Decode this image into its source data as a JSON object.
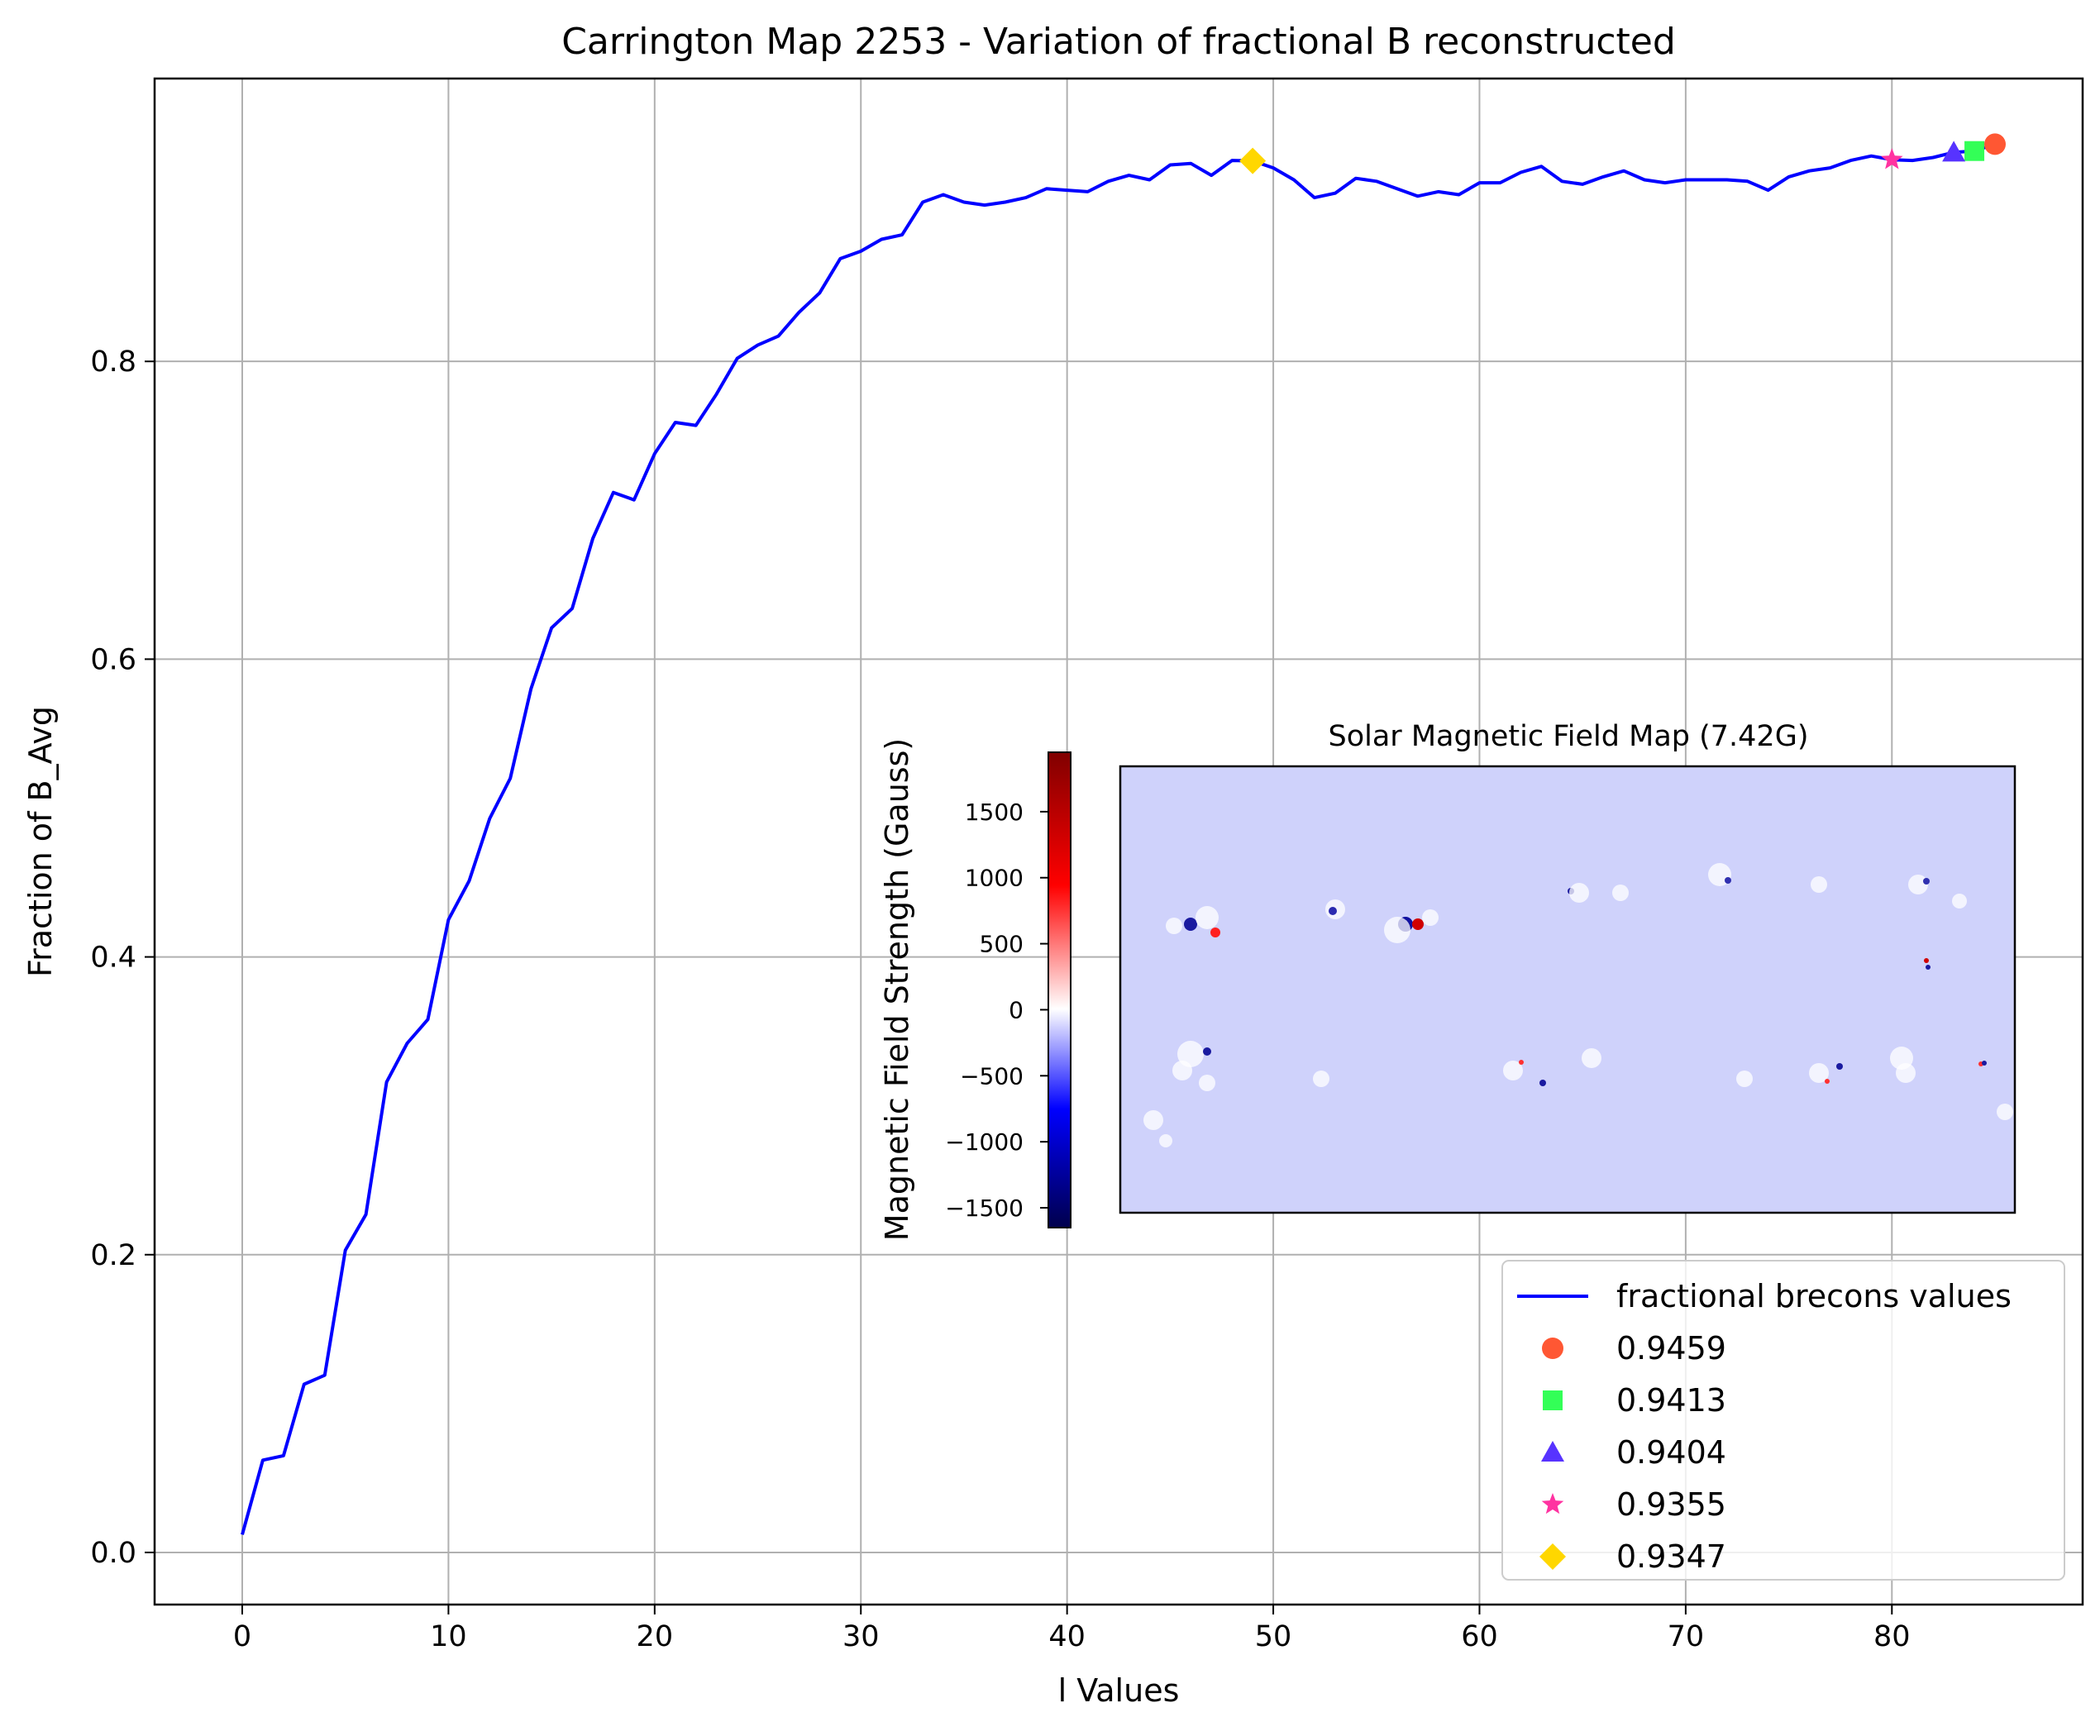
{
  "chart_data": {
    "type": "line",
    "title": "Carrington Map 2253 - Variation of fractional B reconstructed",
    "xlabel": "l Values",
    "ylabel": "Fraction of B_Avg",
    "xlim": [
      -4.25,
      89.25
    ],
    "ylim": [
      -0.035,
      0.99
    ],
    "xticks": [
      0,
      10,
      20,
      30,
      40,
      50,
      60,
      70,
      80
    ],
    "yticks": [
      0.0,
      0.2,
      0.4,
      0.6,
      0.8
    ],
    "ytick_labels": [
      "0.0",
      "0.2",
      "0.4",
      "0.6",
      "0.8"
    ],
    "grid": true,
    "series": [
      {
        "name": "fractional brecons values",
        "color": "#0000ff",
        "x": [
          0,
          1,
          2,
          3,
          4,
          5,
          6,
          7,
          8,
          9,
          10,
          11,
          12,
          13,
          14,
          15,
          16,
          17,
          18,
          19,
          20,
          21,
          22,
          23,
          24,
          25,
          26,
          27,
          28,
          29,
          30,
          31,
          32,
          33,
          34,
          35,
          36,
          37,
          38,
          39,
          40,
          41,
          42,
          43,
          44,
          45,
          46,
          47,
          48,
          49,
          50,
          51,
          52,
          53,
          54,
          55,
          56,
          57,
          58,
          59,
          60,
          61,
          62,
          63,
          64,
          65,
          66,
          67,
          68,
          69,
          70,
          71,
          72,
          73,
          74,
          75,
          76,
          77,
          78,
          79,
          80,
          81,
          82,
          83,
          84,
          85
        ],
        "values": [
          0.012,
          0.062,
          0.065,
          0.113,
          0.119,
          0.203,
          0.227,
          0.316,
          0.342,
          0.358,
          0.425,
          0.451,
          0.493,
          0.52,
          0.58,
          0.621,
          0.634,
          0.681,
          0.712,
          0.707,
          0.738,
          0.759,
          0.757,
          0.778,
          0.802,
          0.811,
          0.817,
          0.833,
          0.846,
          0.869,
          0.874,
          0.882,
          0.885,
          0.907,
          0.912,
          0.907,
          0.905,
          0.907,
          0.91,
          0.916,
          0.915,
          0.914,
          0.921,
          0.925,
          0.922,
          0.932,
          0.933,
          0.925,
          0.935,
          0.9347,
          0.93,
          0.922,
          0.91,
          0.913,
          0.923,
          0.921,
          0.916,
          0.911,
          0.914,
          0.912,
          0.92,
          0.92,
          0.927,
          0.931,
          0.921,
          0.919,
          0.924,
          0.928,
          0.922,
          0.92,
          0.922,
          0.922,
          0.922,
          0.921,
          0.915,
          0.924,
          0.928,
          0.93,
          0.935,
          0.938,
          0.9355,
          0.935,
          0.937,
          0.9404,
          0.9413,
          0.9459
        ]
      }
    ],
    "markers": [
      {
        "label": "0.9459",
        "x": 85,
        "y": 0.9459,
        "shape": "circle",
        "color": "#ff5733"
      },
      {
        "label": "0.9413",
        "x": 84,
        "y": 0.9413,
        "shape": "square",
        "color": "#33ff57"
      },
      {
        "label": "0.9404",
        "x": 83,
        "y": 0.9404,
        "shape": "triangle",
        "color": "#5733ff"
      },
      {
        "label": "0.9355",
        "x": 80,
        "y": 0.9355,
        "shape": "star",
        "color": "#ff33a1"
      },
      {
        "label": "0.9347",
        "x": 49,
        "y": 0.9347,
        "shape": "diamond",
        "color": "#ffd700"
      }
    ],
    "legend_position": "lower-right",
    "inset": {
      "title": "Solar Magnetic Field Map (7.42G)",
      "colorbar_label": "Magnetic Field Strength (Gauss)",
      "colorbar_ticks": [
        1500,
        1000,
        500,
        0,
        -500,
        -1000,
        -1500
      ],
      "colorbar_tick_labels": [
        "1500",
        "1000",
        "500",
        "0",
        "−500",
        "−1000",
        "−1500"
      ],
      "colorbar_range": [
        -1650,
        1950
      ],
      "colormap": "seismic"
    }
  }
}
